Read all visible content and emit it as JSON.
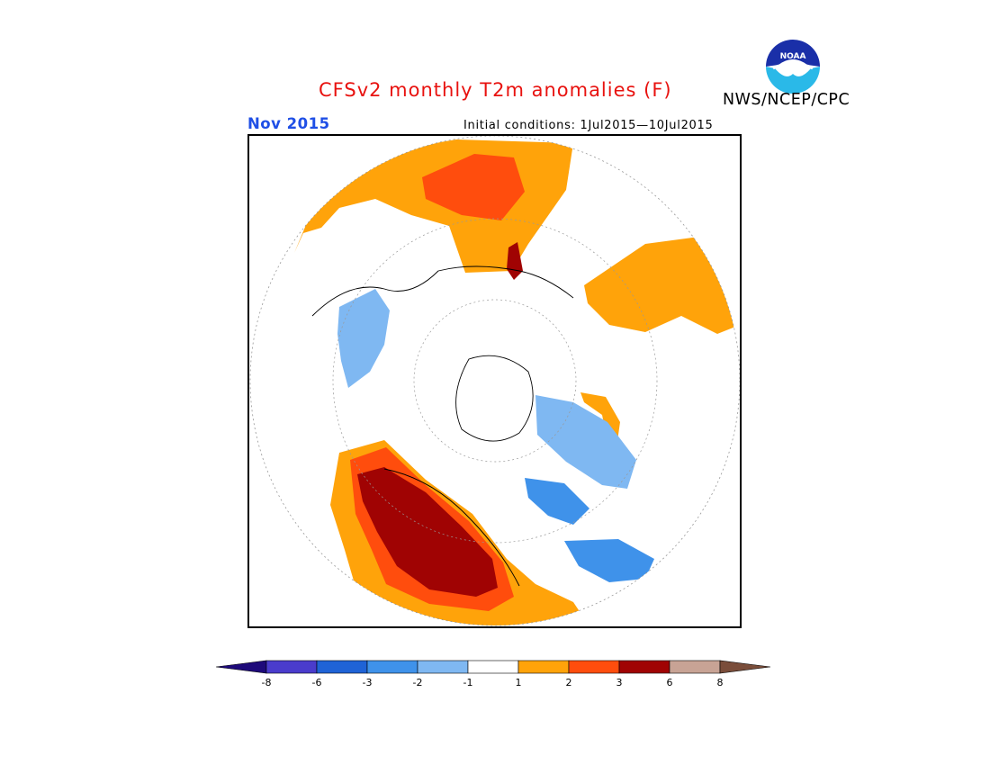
{
  "header": {
    "title": "CFSv2 monthly T2m anomalies (F)",
    "title_color": "#e8120f",
    "org": "NWS/NCEP/CPC",
    "month": "Nov 2015",
    "month_color": "#1f4fe6",
    "initial_conditions": "Initial conditions: 1Jul2015—10Jul2015"
  },
  "logo": {
    "icon": "noaa-logo",
    "text": "NOAA"
  },
  "legend": {
    "tick_labels": [
      "-8",
      "-6",
      "-3",
      "-2",
      "-1",
      "1",
      "2",
      "3",
      "6",
      "8"
    ],
    "colors": {
      "below_-8": "#1e0a7a",
      "-8_to_-6": "#4a3ccc",
      "-6_to_-3": "#1f63d6",
      "-3_to_-2": "#3f92ea",
      "-2_to_-1": "#7fb8f2",
      "-1_to_1": "#ffffff",
      "1_to_2": "#ffa30a",
      "2_to_3": "#ff4d0d",
      "3_to_6": "#a00303",
      "6_to_8": "#c8a395",
      "above_8": "#7a4d3a"
    }
  }
}
